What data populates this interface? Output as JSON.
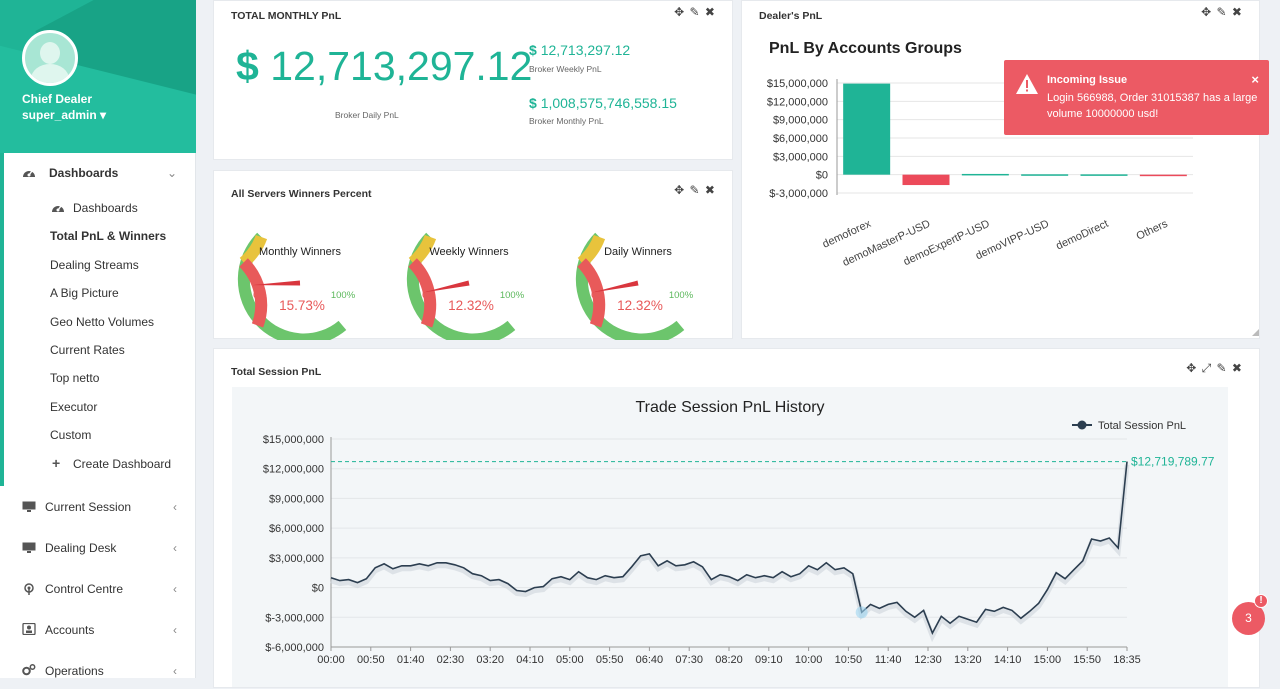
{
  "sidebar": {
    "role": "Chief Dealer",
    "user": "super_admin ▾",
    "items": [
      {
        "label": "Dashboards",
        "icon": "dashboard-icon",
        "chevron": "⌄"
      },
      {
        "label": "Dashboards",
        "icon": "dashboard-icon"
      },
      {
        "label": "Total PnL & Winners"
      },
      {
        "label": "Dealing Streams"
      },
      {
        "label": "A Big Picture"
      },
      {
        "label": "Geo Netto Volumes"
      },
      {
        "label": "Current Rates"
      },
      {
        "label": "Top netto"
      },
      {
        "label": "Executor"
      },
      {
        "label": "Custom"
      },
      {
        "label": "Create Dashboard",
        "icon": "plus-icon"
      },
      {
        "label": "Current Session",
        "icon": "monitor-icon",
        "chevron": "‹"
      },
      {
        "label": "Dealing Desk",
        "icon": "monitor-icon",
        "chevron": "‹"
      },
      {
        "label": "Control Centre",
        "icon": "broadcast-icon",
        "chevron": "‹"
      },
      {
        "label": "Accounts",
        "icon": "user-icon",
        "chevron": "‹"
      },
      {
        "label": "Operations",
        "icon": "gears-icon",
        "chevron": "‹"
      }
    ]
  },
  "panels": {
    "monthly": {
      "title": "TOTAL MONTHLY PnL",
      "tools": "✥ ✎ ✖"
    },
    "dealers": {
      "title": "Dealer's PnL",
      "tools": "✥ ✎ ✖"
    },
    "winners": {
      "title": "All Servers Winners Percent",
      "tools": "✥ ✎ ✖"
    },
    "session": {
      "title": "Total Session PnL",
      "tools": "✥ ⤢ ✎ ✖"
    }
  },
  "pnl": {
    "currency": "$",
    "daily_value": "12,713,297.12",
    "daily_caption": "Broker Daily PnL",
    "weekly_value": "12,713,297.12",
    "weekly_caption": "Broker Weekly PnL",
    "monthly_value": "1,008,575,746,558.15",
    "monthly_caption": "Broker Monthly PnL"
  },
  "gauges": [
    {
      "label": "Monthly Winners",
      "value": 15.73,
      "display": "15.73%",
      "min": "0%",
      "max": "100%"
    },
    {
      "label": "Weekly Winners",
      "value": 12.32,
      "display": "12.32%",
      "min": "0%",
      "max": "100%"
    },
    {
      "label": "Daily Winners",
      "value": 12.32,
      "display": "12.32%",
      "min": "0%",
      "max": "100%"
    }
  ],
  "toast": {
    "title": "Incoming Issue",
    "message": "Login 566988, Order 31015387 has a large volume 10000000 usd!",
    "close": "×"
  },
  "notifications": {
    "count": "3",
    "alert": "!"
  },
  "colors": {
    "accent": "#1fb496",
    "negative": "#ec5a64",
    "line": "#2c3e50"
  },
  "chart_data": [
    {
      "type": "bar",
      "title": "PnL By Accounts Groups",
      "categories": [
        "demoforex",
        "demoMasterP-USD",
        "demoExpertP-USD",
        "demoVIPP-USD",
        "demoDirect",
        "Others"
      ],
      "values": [
        14900000,
        -1700000,
        120000,
        60000,
        50000,
        -100000
      ],
      "ylim": [
        -3000000,
        15000000
      ],
      "yticks": [
        "$15,000,000",
        "$12,000,000",
        "$9,000,000",
        "$6,000,000",
        "$3,000,000",
        "$0",
        "$-3,000,000"
      ],
      "xlabel": "",
      "ylabel": ""
    },
    {
      "type": "line",
      "title": "Trade Session PnL History",
      "legend": "Total Session PnL",
      "last_value_label": "$12,719,789.77",
      "reference_line": 12719789.77,
      "ylim": [
        -6000000,
        15000000
      ],
      "yticks": [
        "$15,000,000",
        "$12,000,000",
        "$9,000,000",
        "$6,000,000",
        "$3,000,000",
        "$0",
        "$-3,000,000",
        "$-6,000,000"
      ],
      "xticks": [
        "00:00",
        "00:50",
        "01:40",
        "02:30",
        "03:20",
        "04:10",
        "05:00",
        "05:50",
        "06:40",
        "07:30",
        "08:20",
        "09:10",
        "10:00",
        "10:50",
        "11:40",
        "12:30",
        "13:20",
        "14:10",
        "15:00",
        "15:50",
        "18:35"
      ],
      "series": [
        {
          "name": "Total Session PnL",
          "values": [
            1000000,
            700000,
            800000,
            500000,
            900000,
            2000000,
            2400000,
            1900000,
            2200000,
            2200000,
            2400000,
            2200000,
            2500000,
            2500000,
            2300000,
            2000000,
            1400000,
            1200000,
            700000,
            800000,
            400000,
            -300000,
            -400000,
            0,
            100000,
            900000,
            1100000,
            800000,
            1600000,
            1000000,
            800000,
            1200000,
            1000000,
            1100000,
            2100000,
            3200000,
            3400000,
            2200000,
            2700000,
            2200000,
            2300000,
            2600000,
            2100000,
            800000,
            1300000,
            1100000,
            700000,
            1300000,
            1000000,
            1200000,
            1000000,
            1600000,
            1100000,
            1400000,
            2200000,
            1800000,
            2500000,
            1800000,
            2000000,
            1400000,
            -2500000,
            -1700000,
            -2100000,
            -1700000,
            -1500000,
            -2400000,
            -3000000,
            -2300000,
            -4600000,
            -2900000,
            -3600000,
            -2900000,
            -3200000,
            -3500000,
            -2200000,
            -2400000,
            -2000000,
            -2300000,
            -3100000,
            -2400000,
            -1600000,
            -200000,
            1500000,
            900000,
            1800000,
            2700000,
            4900000,
            4700000,
            5000000,
            4000000,
            12719789.77
          ]
        }
      ]
    }
  ]
}
